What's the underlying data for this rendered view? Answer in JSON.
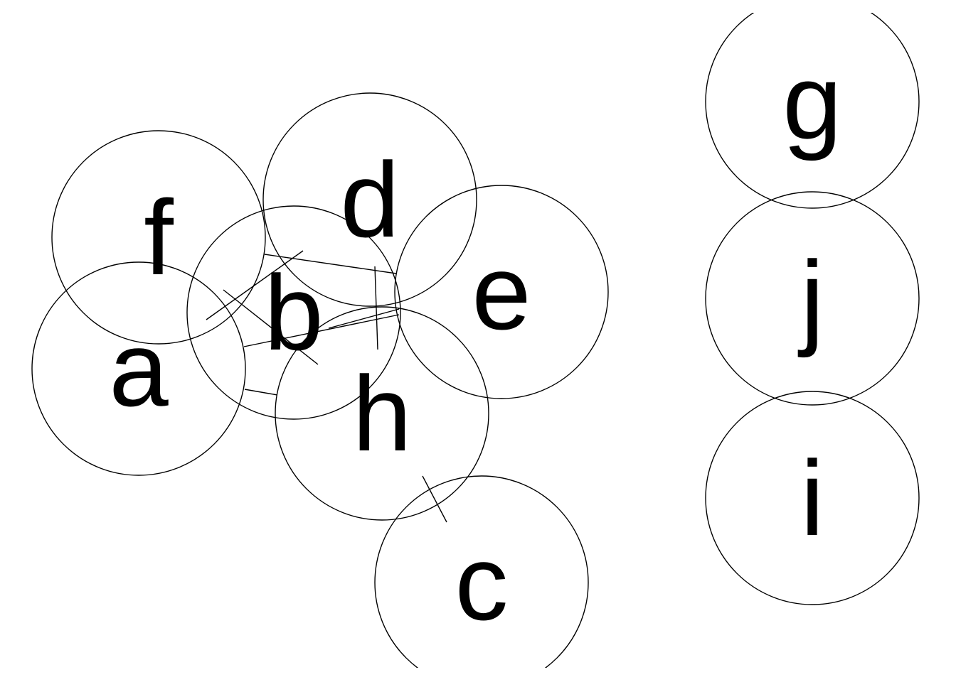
{
  "diagram": {
    "style": {
      "stroke_color": "#000000",
      "background_color": "#ffffff"
    },
    "nodes": [
      {
        "id": "a",
        "label": "a"
      },
      {
        "id": "b",
        "label": "b"
      },
      {
        "id": "c",
        "label": "c"
      },
      {
        "id": "d",
        "label": "d"
      },
      {
        "id": "e",
        "label": "e"
      },
      {
        "id": "f",
        "label": "f"
      },
      {
        "id": "g",
        "label": "g"
      },
      {
        "id": "h",
        "label": "h"
      },
      {
        "id": "i",
        "label": "i"
      },
      {
        "id": "j",
        "label": "j"
      }
    ],
    "edges": [
      {
        "from": "a",
        "to": "b"
      },
      {
        "from": "a",
        "to": "h"
      },
      {
        "from": "a",
        "to": "e"
      },
      {
        "from": "b",
        "to": "d"
      },
      {
        "from": "b",
        "to": "e"
      },
      {
        "from": "b",
        "to": "h"
      },
      {
        "from": "d",
        "to": "h"
      },
      {
        "from": "h",
        "to": "c"
      }
    ]
  }
}
